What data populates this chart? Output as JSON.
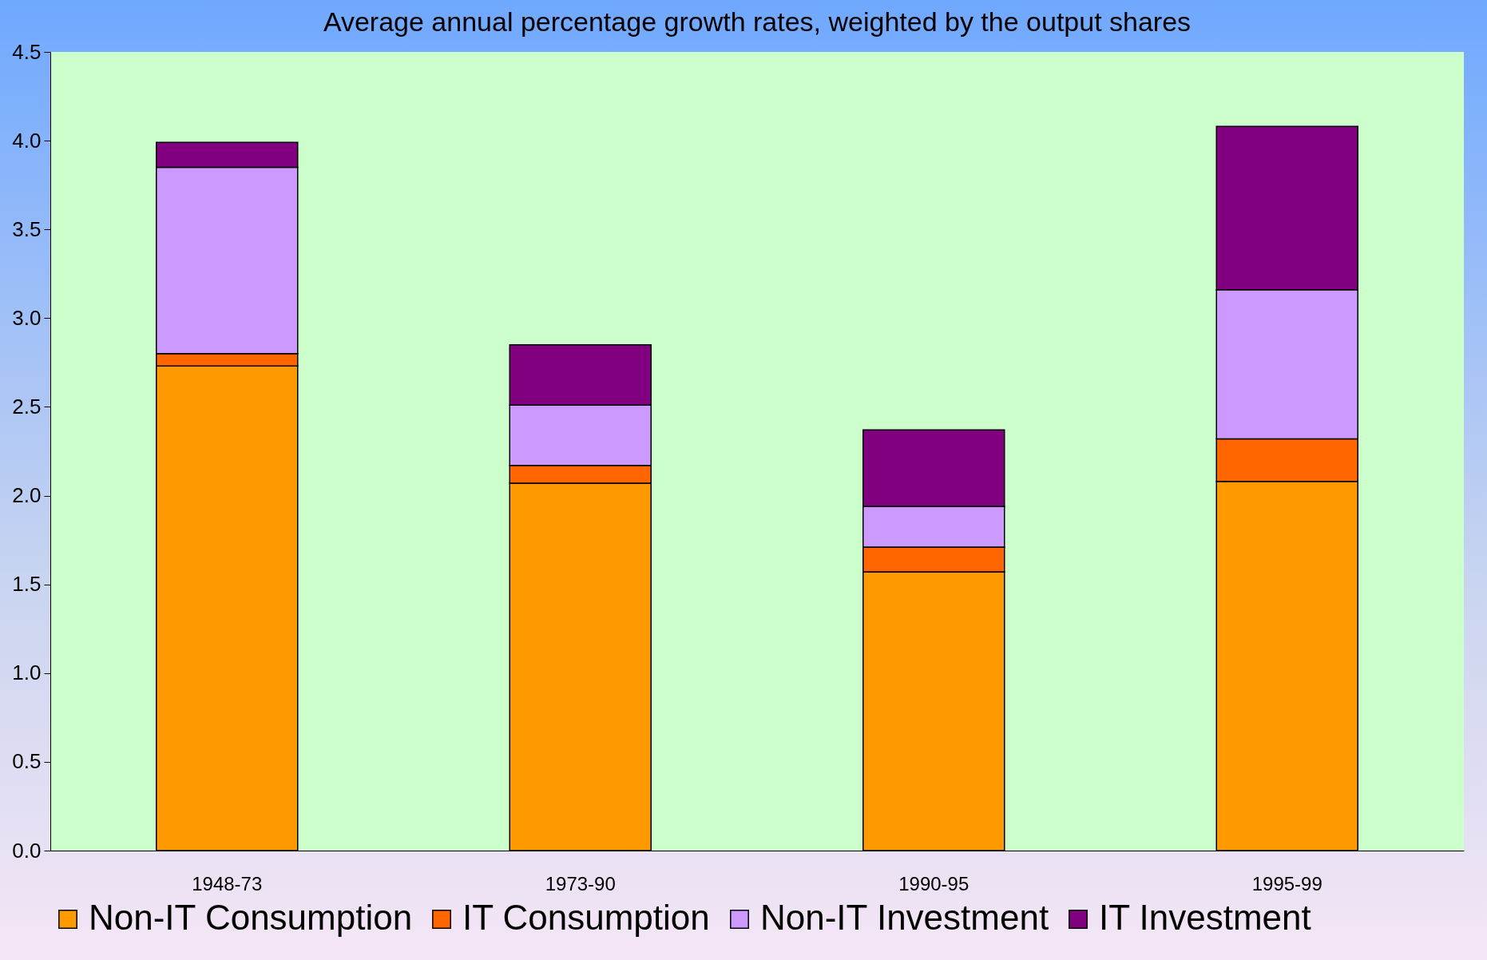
{
  "chart_data": {
    "type": "bar",
    "title": "Average annual percentage growth rates, weighted by the output shares",
    "categories": [
      "1948-73",
      "1973-90",
      "1990-95",
      "1995-99"
    ],
    "stacked": true,
    "series": [
      {
        "name": "Non-IT Consumption",
        "color": "#ff9900",
        "values": [
          2.73,
          2.07,
          1.57,
          2.08
        ]
      },
      {
        "name": "IT Consumption",
        "color": "#ff6600",
        "values": [
          0.07,
          0.1,
          0.14,
          0.24
        ]
      },
      {
        "name": "Non-IT Investment",
        "color": "#cc99ff",
        "values": [
          1.05,
          0.34,
          0.23,
          0.84
        ]
      },
      {
        "name": "IT Investment",
        "color": "#800080",
        "values": [
          0.14,
          0.34,
          0.43,
          0.92
        ]
      }
    ],
    "ylim": [
      0,
      4.5
    ],
    "yticks": [
      {
        "value": 0,
        "label": "0.0"
      },
      0.5,
      {
        "value": 1,
        "label": "1.0"
      },
      1.5,
      {
        "value": 2,
        "label": "2.0"
      },
      2.5,
      {
        "value": 3,
        "label": "3.0"
      },
      3.5,
      {
        "value": 4,
        "label": "4.0"
      },
      4.5
    ],
    "grid": false,
    "legend": "bottom"
  }
}
